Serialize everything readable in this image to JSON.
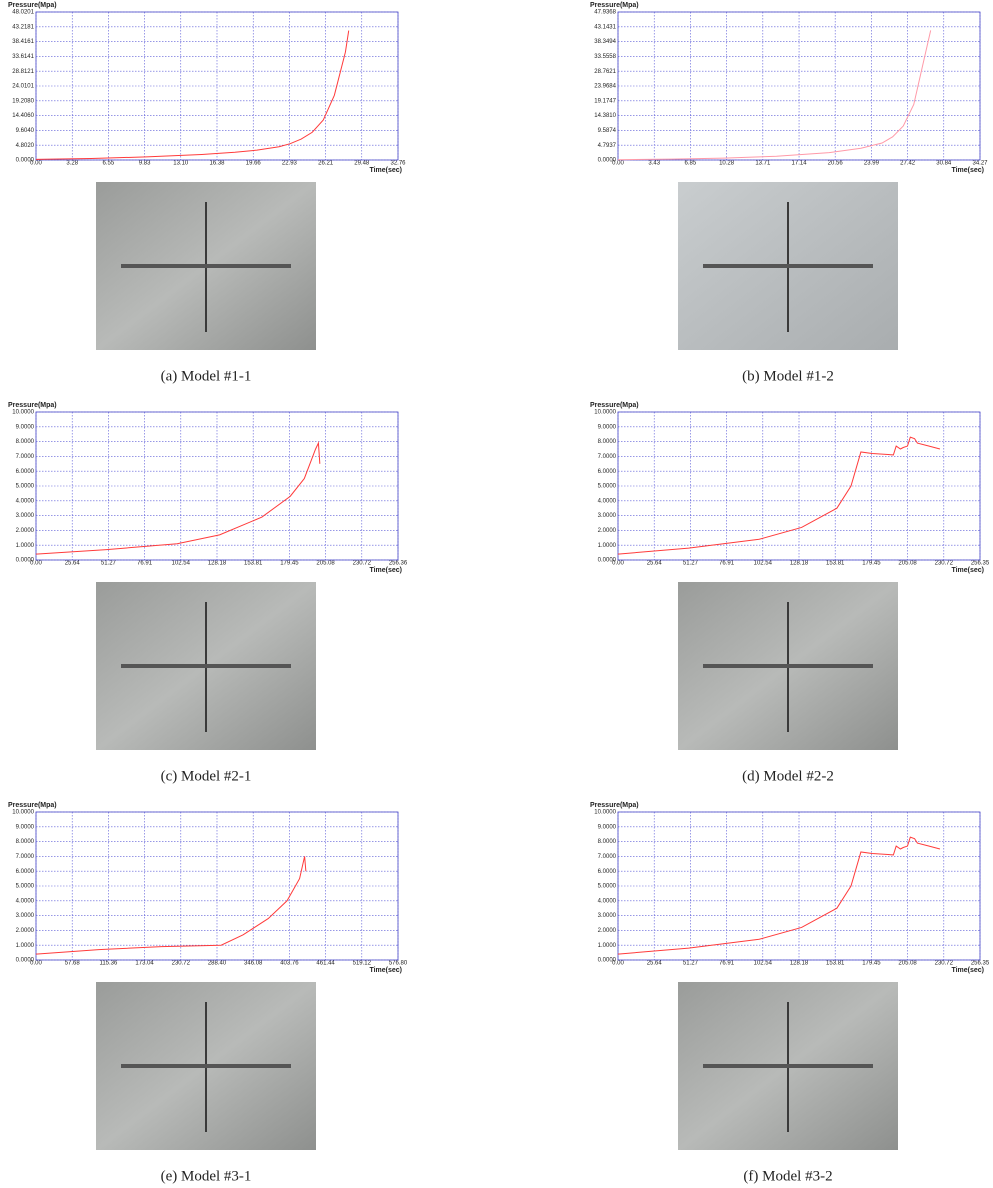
{
  "chart_data": [
    {
      "type": "line",
      "y_label": "Pressure(Mpa)",
      "x_label": "Time(sec)",
      "caption": "(a)  Model  #1-1",
      "grid": true,
      "xlim": [
        0,
        32.76
      ],
      "ylim": [
        0,
        48.0201
      ],
      "xticks": [
        {
          "value": 0,
          "label": "0.00"
        },
        3.28,
        6.55,
        9.83,
        {
          "value": 13.1,
          "label": "13.10"
        },
        16.38,
        19.66,
        22.93,
        26.21,
        29.48,
        32.76
      ],
      "yticks": [
        {
          "value": 0,
          "label": "0.0000"
        },
        {
          "value": 4.802,
          "label": "4.8020"
        },
        {
          "value": 9.604,
          "label": "9.6040"
        },
        {
          "value": 14.406,
          "label": "14.4060"
        },
        {
          "value": 19.208,
          "label": "19.2080"
        },
        24.0101,
        28.8121,
        33.6141,
        38.4161,
        43.2181,
        48.0201
      ],
      "x": [
        0,
        5,
        10,
        15,
        18,
        20,
        22,
        23,
        24,
        25,
        26,
        27,
        28,
        28.3
      ],
      "series": [
        {
          "color": "#ff3b3b",
          "values": [
            0.2,
            0.5,
            1,
            1.8,
            2.5,
            3.2,
            4.3,
            5.3,
            6.8,
            9,
            13,
            21,
            35,
            42
          ]
        }
      ]
    },
    {
      "type": "line",
      "y_label": "Pressure(Mpa)",
      "x_label": "Time(sec)",
      "caption": "(b)  Model  #1-2",
      "grid": true,
      "xlim": [
        0,
        34.27
      ],
      "ylim": [
        0,
        47.9368
      ],
      "xticks": [
        {
          "value": 0,
          "label": "0.00"
        },
        3.43,
        6.85,
        10.28,
        13.71,
        17.14,
        20.56,
        23.99,
        27.42,
        30.84,
        34.27
      ],
      "yticks": [
        {
          "value": 0,
          "label": "0.0000"
        },
        4.7937,
        9.5874,
        {
          "value": 14.381,
          "label": "14.3810"
        },
        19.1747,
        23.9684,
        28.7621,
        33.5558,
        38.3494,
        43.1431,
        47.9368
      ],
      "x": [
        0,
        5,
        10,
        15,
        20,
        23,
        25,
        26,
        27,
        28,
        28.8,
        29.6
      ],
      "series": [
        {
          "color": "#ff9aa8",
          "values": [
            0.1,
            0.3,
            0.6,
            1.2,
            2.4,
            3.8,
            5.5,
            7.5,
            11,
            18,
            30,
            42
          ]
        }
      ]
    },
    {
      "type": "line",
      "y_label": "Pressure(Mpa)",
      "x_label": "Time(sec)",
      "caption": "(c)  Model  #2-1",
      "grid": true,
      "xlim": [
        0,
        256.36
      ],
      "ylim": [
        0,
        10
      ],
      "xticks": [
        {
          "value": 0,
          "label": "0.00"
        },
        25.64,
        51.27,
        76.91,
        102.54,
        128.18,
        153.81,
        179.45,
        205.08,
        230.72,
        256.36
      ],
      "yticks": [
        {
          "value": 0,
          "label": "0.0000"
        },
        {
          "value": 1,
          "label": "1.0000"
        },
        {
          "value": 2,
          "label": "2.0000"
        },
        {
          "value": 3,
          "label": "3.0000"
        },
        {
          "value": 4,
          "label": "4.0000"
        },
        {
          "value": 5,
          "label": "5.0000"
        },
        {
          "value": 6,
          "label": "6.0000"
        },
        {
          "value": 7,
          "label": "7.0000"
        },
        {
          "value": 8,
          "label": "8.0000"
        },
        {
          "value": 9,
          "label": "9.0000"
        },
        {
          "value": 10,
          "label": "10.0000"
        }
      ],
      "x": [
        0,
        50,
        100,
        130,
        160,
        180,
        190,
        198,
        200,
        201
      ],
      "series": [
        {
          "color": "#ff3b3b",
          "values": [
            0.4,
            0.7,
            1.1,
            1.7,
            2.9,
            4.3,
            5.5,
            7.5,
            7.9,
            6.5
          ]
        }
      ]
    },
    {
      "type": "line",
      "y_label": "Pressure(Mpa)",
      "x_label": "Time(sec)",
      "caption": "(d)  Model  #2-2",
      "grid": true,
      "xlim": [
        0,
        256.35
      ],
      "ylim": [
        0,
        10
      ],
      "xticks": [
        {
          "value": 0,
          "label": "0.00"
        },
        25.64,
        51.27,
        76.91,
        102.54,
        128.18,
        153.81,
        179.45,
        205.08,
        230.72,
        256.35
      ],
      "yticks": [
        {
          "value": 0,
          "label": "0.0000"
        },
        {
          "value": 1,
          "label": "1.0000"
        },
        {
          "value": 2,
          "label": "2.0000"
        },
        {
          "value": 3,
          "label": "3.0000"
        },
        {
          "value": 4,
          "label": "4.0000"
        },
        {
          "value": 5,
          "label": "5.0000"
        },
        {
          "value": 6,
          "label": "6.0000"
        },
        {
          "value": 7,
          "label": "7.0000"
        },
        {
          "value": 8,
          "label": "8.0000"
        },
        {
          "value": 9,
          "label": "9.0000"
        },
        {
          "value": 10,
          "label": "10.0000"
        }
      ],
      "x": [
        0,
        50,
        100,
        130,
        155,
        165,
        172,
        180,
        195,
        197,
        200,
        202,
        205,
        207,
        210,
        212,
        220,
        228
      ],
      "series": [
        {
          "color": "#ff3b3b",
          "values": [
            0.4,
            0.8,
            1.4,
            2.2,
            3.5,
            5,
            7.3,
            7.2,
            7.1,
            7.7,
            7.5,
            7.6,
            7.7,
            8.3,
            8.2,
            7.9,
            7.7,
            7.5
          ]
        }
      ]
    },
    {
      "type": "line",
      "y_label": "Pressure(Mpa)",
      "x_label": "Time(sec)",
      "caption": "(e)  Model  #3-1",
      "grid": true,
      "xlim": [
        0,
        576.8
      ],
      "ylim": [
        0,
        10
      ],
      "xticks": [
        {
          "value": 0,
          "label": "0.00"
        },
        57.68,
        115.36,
        173.04,
        230.72,
        {
          "value": 288.4,
          "label": "288.40"
        },
        346.08,
        403.76,
        461.44,
        519.12,
        {
          "value": 576.8,
          "label": "576.80"
        }
      ],
      "yticks": [
        {
          "value": 0,
          "label": "0.0000"
        },
        {
          "value": 1,
          "label": "1.0000"
        },
        {
          "value": 2,
          "label": "2.0000"
        },
        {
          "value": 3,
          "label": "3.0000"
        },
        {
          "value": 4,
          "label": "4.0000"
        },
        {
          "value": 5,
          "label": "5.0000"
        },
        {
          "value": 6,
          "label": "6.0000"
        },
        {
          "value": 7,
          "label": "7.0000"
        },
        {
          "value": 8,
          "label": "8.0000"
        },
        {
          "value": 9,
          "label": "9.0000"
        },
        {
          "value": 10,
          "label": "10.0000"
        }
      ],
      "x": [
        0,
        100,
        200,
        295,
        330,
        370,
        400,
        420,
        428,
        430
      ],
      "series": [
        {
          "color": "#ff3b3b",
          "values": [
            0.4,
            0.7,
            0.9,
            1,
            1.7,
            2.8,
            4,
            5.5,
            7,
            6
          ]
        }
      ]
    },
    {
      "type": "line",
      "y_label": "Pressure(Mpa)",
      "x_label": "Time(sec)",
      "caption": "(f)  Model  #3-2",
      "grid": true,
      "xlim": [
        0,
        256.35
      ],
      "ylim": [
        0,
        10
      ],
      "xticks": [
        {
          "value": 0,
          "label": "0.00"
        },
        25.64,
        51.27,
        76.91,
        102.54,
        128.18,
        153.81,
        179.45,
        205.08,
        230.72,
        256.35
      ],
      "yticks": [
        {
          "value": 0,
          "label": "0.0000"
        },
        {
          "value": 1,
          "label": "1.0000"
        },
        {
          "value": 2,
          "label": "2.0000"
        },
        {
          "value": 3,
          "label": "3.0000"
        },
        {
          "value": 4,
          "label": "4.0000"
        },
        {
          "value": 5,
          "label": "5.0000"
        },
        {
          "value": 6,
          "label": "6.0000"
        },
        {
          "value": 7,
          "label": "7.0000"
        },
        {
          "value": 8,
          "label": "8.0000"
        },
        {
          "value": 9,
          "label": "9.0000"
        },
        {
          "value": 10,
          "label": "10.0000"
        }
      ],
      "x": [
        0,
        50,
        100,
        130,
        155,
        165,
        172,
        180,
        195,
        197,
        200,
        202,
        205,
        207,
        210,
        212,
        220,
        228
      ],
      "series": [
        {
          "color": "#ff3b3b",
          "values": [
            0.4,
            0.8,
            1.4,
            2.2,
            3.5,
            5,
            7.3,
            7.2,
            7.1,
            7.7,
            7.5,
            7.6,
            7.7,
            8.3,
            8.2,
            7.9,
            7.7,
            7.5
          ]
        }
      ]
    }
  ]
}
